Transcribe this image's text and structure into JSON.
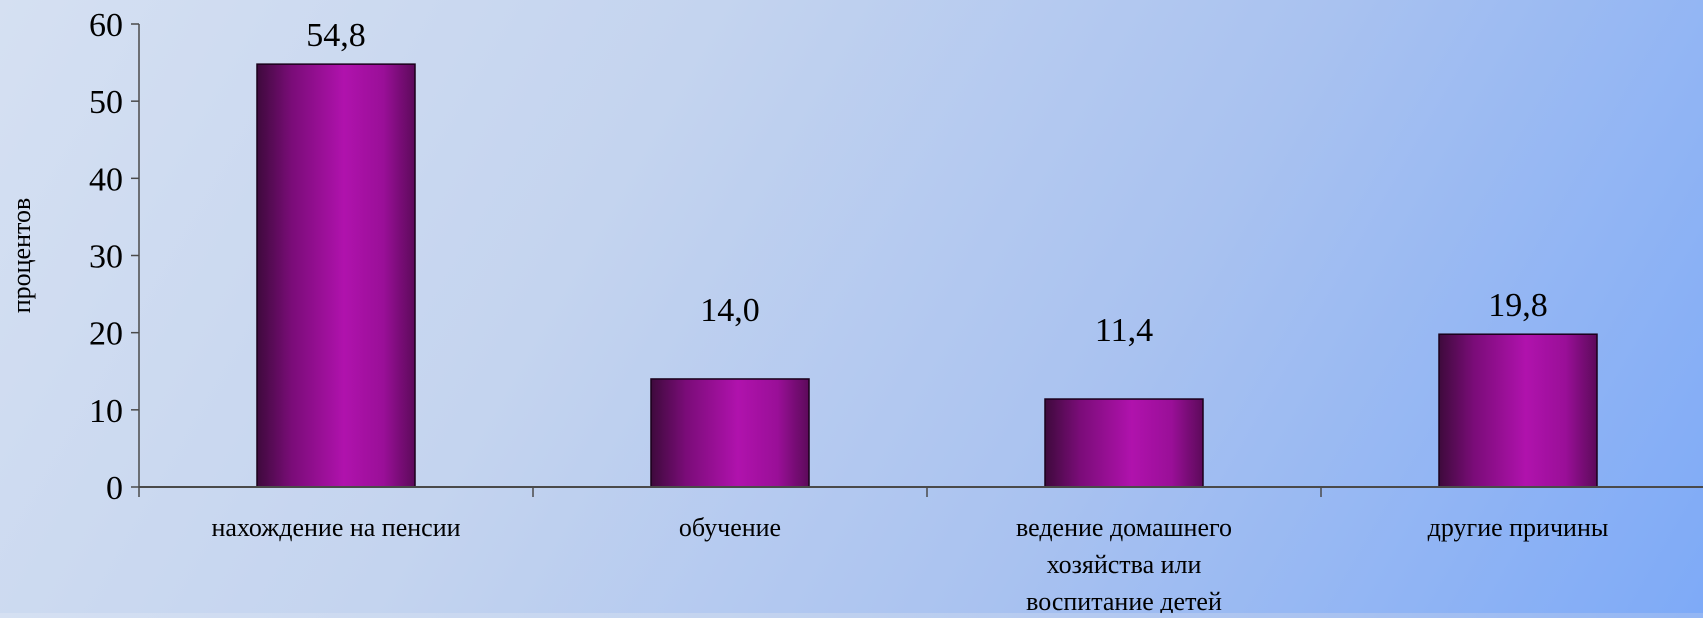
{
  "chart_data": {
    "type": "bar",
    "title": "",
    "xlabel": "",
    "ylabel": "процентов",
    "ylim": [
      0,
      60
    ],
    "yticks": [
      0,
      10,
      20,
      30,
      40,
      50,
      60
    ],
    "grid": false,
    "legend": "none",
    "categories": [
      [
        "нахождение на пенсии"
      ],
      [
        "обучение"
      ],
      [
        "ведение домашнего",
        "хозяйства или",
        "воспитание детей"
      ],
      [
        "другие причины"
      ]
    ],
    "values": [
      54.8,
      14.0,
      11.4,
      19.8
    ],
    "value_labels": [
      "54,8",
      "14,0",
      "11,4",
      "19,8"
    ],
    "bar_color": "#a0119f"
  }
}
